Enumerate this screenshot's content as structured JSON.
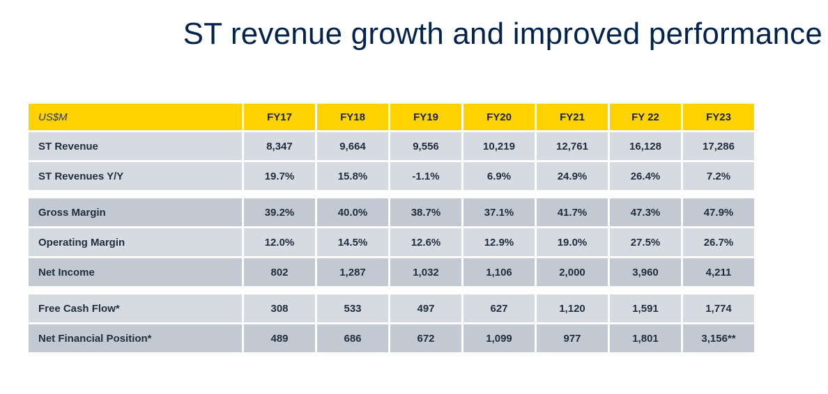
{
  "title": "ST revenue growth and improved performance",
  "table": {
    "header_label": "US$M",
    "columns": [
      "FY17",
      "FY18",
      "FY19",
      "FY20",
      "FY21",
      "FY 22",
      "FY23"
    ],
    "rows": [
      {
        "label": "ST Revenue",
        "values": [
          "8,347",
          "9,664",
          "9,556",
          "10,219",
          "12,761",
          "16,128",
          "17,286"
        ]
      },
      {
        "label": "ST Revenues Y/Y",
        "values": [
          "19.7%",
          "15.8%",
          "-1.1%",
          "6.9%",
          "24.9%",
          "26.4%",
          "7.2%"
        ]
      },
      {
        "label": "Gross Margin",
        "values": [
          "39.2%",
          "40.0%",
          "38.7%",
          "37.1%",
          "41.7%",
          "47.3%",
          "47.9%"
        ]
      },
      {
        "label": "Operating Margin",
        "values": [
          "12.0%",
          "14.5%",
          "12.6%",
          "12.9%",
          "19.0%",
          "27.5%",
          "26.7%"
        ]
      },
      {
        "label": "Net Income",
        "values": [
          "802",
          "1,287",
          "1,032",
          "1,106",
          "2,000",
          "3,960",
          "4,211"
        ]
      },
      {
        "label": "Free Cash Flow*",
        "values": [
          "308",
          "533",
          "497",
          "627",
          "1,120",
          "1,591",
          "1,774"
        ]
      },
      {
        "label": "Net Financial Position*",
        "values": [
          "489",
          "686",
          "672",
          "1,099",
          "977",
          "1,801",
          "3,156**"
        ]
      }
    ]
  },
  "colors": {
    "header_yellow": "#ffd200",
    "title_navy": "#03234b",
    "row_light": "#d6dbe2",
    "row_dark": "#c3c9d2"
  }
}
